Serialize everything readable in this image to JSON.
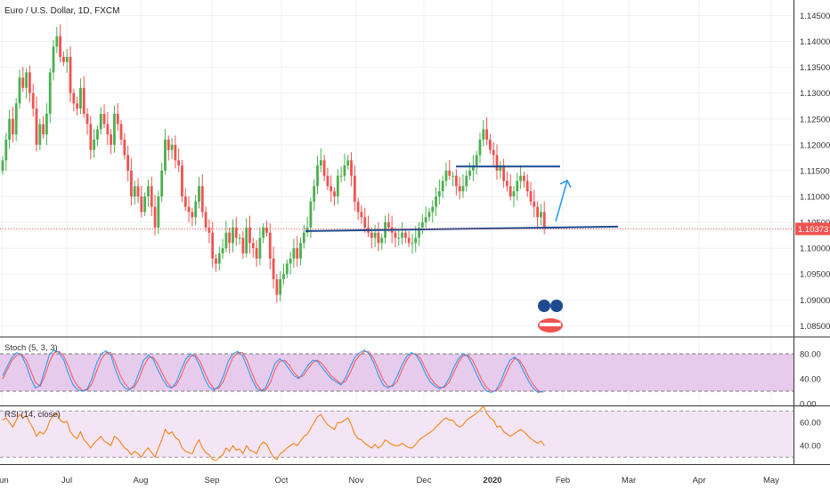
{
  "header": {
    "title": "Euro / U.S. Dollar, 1D, FXCM"
  },
  "price": {
    "last_price": "1.10373",
    "y_ticks": [
      "1.14500",
      "1.14000",
      "1.13500",
      "1.13000",
      "1.12500",
      "1.12000",
      "1.11500",
      "1.11000",
      "1.10500",
      "1.10000",
      "1.09500",
      "1.09000",
      "1.08500"
    ]
  },
  "stoch": {
    "label": "Stoch (5, 3, 3)",
    "ticks": [
      "80.00",
      "40.00",
      "0.00"
    ],
    "band": [
      20,
      80
    ]
  },
  "rsi": {
    "label": "RSI (14, close)",
    "ticks": [
      "60.00",
      "40.00"
    ]
  },
  "x_axis": {
    "labels": [
      "Jun",
      "Jul",
      "Aug",
      "Sep",
      "Oct",
      "Nov",
      "Dec",
      "2020",
      "Feb",
      "Mar",
      "Apr",
      "May"
    ]
  },
  "colors": {
    "up": "#4caf50",
    "down": "#ef5350",
    "stoch_k": "#2196f3",
    "stoch_d": "#ff5252",
    "rsi": "#f57c00",
    "band": "#e1bee7",
    "annotation": "#1e4b8f",
    "arrow": "#2196f3",
    "last_price_bg": "#ef5350"
  },
  "chart_data": [
    {
      "type": "candlestick",
      "title": "Euro / U.S. Dollar, 1D, FXCM",
      "ylim": [
        1.083,
        1.148
      ],
      "annotations": [
        {
          "kind": "horizontal_line",
          "value": 1.1158,
          "from": "Dec",
          "to": "Feb"
        },
        {
          "kind": "horizontal_line",
          "value": 1.104,
          "from": "Oct",
          "to": "Mar"
        },
        {
          "kind": "arrow",
          "direction": "up"
        }
      ],
      "close": [
        1.117,
        1.121,
        1.125,
        1.122,
        1.128,
        1.133,
        1.131,
        1.134,
        1.13,
        1.127,
        1.12,
        1.124,
        1.122,
        1.126,
        1.134,
        1.139,
        1.141,
        1.137,
        1.136,
        1.137,
        1.13,
        1.128,
        1.127,
        1.131,
        1.126,
        1.124,
        1.119,
        1.121,
        1.123,
        1.126,
        1.124,
        1.122,
        1.12,
        1.126,
        1.124,
        1.121,
        1.118,
        1.115,
        1.11,
        1.112,
        1.11,
        1.107,
        1.11,
        1.112,
        1.108,
        1.104,
        1.11,
        1.115,
        1.121,
        1.119,
        1.12,
        1.117,
        1.116,
        1.11,
        1.108,
        1.107,
        1.106,
        1.109,
        1.112,
        1.107,
        1.104,
        1.103,
        1.098,
        1.097,
        1.099,
        1.1,
        1.103,
        1.101,
        1.104,
        1.102,
        1.102,
        1.099,
        1.104,
        1.101,
        1.1,
        1.098,
        1.102,
        1.104,
        1.103,
        1.098,
        1.094,
        1.091,
        1.094,
        1.095,
        1.097,
        1.098,
        1.1,
        1.098,
        1.101,
        1.103,
        1.104,
        1.109,
        1.112,
        1.116,
        1.117,
        1.114,
        1.112,
        1.111,
        1.11,
        1.114,
        1.114,
        1.116,
        1.117,
        1.114,
        1.109,
        1.107,
        1.106,
        1.104,
        1.103,
        1.102,
        1.103,
        1.101,
        1.102,
        1.105,
        1.104,
        1.103,
        1.102,
        1.102,
        1.103,
        1.102,
        1.101,
        1.101,
        1.102,
        1.104,
        1.105,
        1.106,
        1.107,
        1.108,
        1.11,
        1.111,
        1.113,
        1.115,
        1.114,
        1.114,
        1.112,
        1.111,
        1.112,
        1.114,
        1.115,
        1.116,
        1.118,
        1.121,
        1.123,
        1.121,
        1.119,
        1.118,
        1.115,
        1.116,
        1.113,
        1.112,
        1.11,
        1.111,
        1.113,
        1.114,
        1.113,
        1.111,
        1.109,
        1.108,
        1.106,
        1.107,
        1.104
      ]
    },
    {
      "type": "line",
      "title": "Stoch (5, 3, 3)",
      "ylim": [
        0,
        100
      ],
      "series": [
        {
          "name": "%K",
          "values": [
            45,
            60,
            75,
            82,
            78,
            62,
            40,
            25,
            30,
            55,
            80,
            86,
            82,
            70,
            48,
            30,
            22,
            20,
            24,
            40,
            65,
            80,
            85,
            78,
            55,
            35,
            25,
            22,
            30,
            50,
            70,
            78,
            72,
            55,
            40,
            28,
            25,
            35,
            55,
            72,
            80,
            75,
            60,
            40,
            26,
            22,
            28,
            45,
            68,
            80,
            84,
            78,
            60,
            40,
            25,
            20,
            26,
            45,
            65,
            72,
            66,
            55,
            45,
            40,
            50,
            62,
            70,
            68,
            58,
            48,
            40,
            35,
            30,
            42,
            60,
            75,
            82,
            86,
            80,
            65,
            45,
            30,
            25,
            30,
            45,
            62,
            76,
            82,
            78,
            65,
            48,
            35,
            28,
            24,
            28,
            40,
            58,
            72,
            80,
            76,
            62,
            45,
            30,
            20,
            18,
            22,
            35,
            55,
            70,
            75,
            66,
            50,
            35,
            24,
            18,
            20
          ]
        },
        {
          "name": "%D",
          "values": [
            40,
            55,
            70,
            78,
            80,
            70,
            52,
            34,
            28,
            45,
            68,
            82,
            84,
            76,
            60,
            40,
            28,
            21,
            22,
            32,
            52,
            72,
            82,
            82,
            66,
            46,
            32,
            24,
            26,
            40,
            60,
            74,
            75,
            64,
            48,
            34,
            26,
            30,
            45,
            64,
            76,
            78,
            68,
            50,
            34,
            24,
            25,
            36,
            56,
            74,
            82,
            82,
            70,
            50,
            32,
            22,
            22,
            34,
            55,
            68,
            70,
            62,
            50,
            42,
            45,
            56,
            66,
            70,
            64,
            54,
            44,
            38,
            32,
            36,
            50,
            68,
            78,
            84,
            83,
            72,
            55,
            38,
            28,
            28,
            36,
            54,
            70,
            80,
            80,
            72,
            56,
            42,
            32,
            26,
            26,
            34,
            50,
            66,
            77,
            78,
            70,
            54,
            38,
            26,
            20,
            20,
            28,
            45,
            62,
            73,
            70,
            58,
            42,
            30,
            21,
            18
          ]
        }
      ]
    },
    {
      "type": "line",
      "title": "RSI (14, close)",
      "ylim": [
        24,
        74
      ],
      "series": [
        {
          "name": "RSI",
          "values": [
            62,
            64,
            60,
            56,
            62,
            67,
            64,
            66,
            60,
            55,
            48,
            52,
            50,
            54,
            62,
            66,
            68,
            62,
            60,
            61,
            52,
            48,
            46,
            52,
            45,
            42,
            38,
            42,
            45,
            48,
            44,
            42,
            40,
            48,
            46,
            42,
            38,
            36,
            32,
            35,
            33,
            30,
            35,
            38,
            34,
            30,
            38,
            45,
            54,
            50,
            52,
            47,
            45,
            38,
            35,
            34,
            33,
            40,
            45,
            38,
            34,
            32,
            28,
            27,
            30,
            32,
            38,
            35,
            40,
            36,
            37,
            33,
            40,
            36,
            35,
            33,
            40,
            43,
            41,
            35,
            30,
            28,
            33,
            35,
            38,
            40,
            42,
            40,
            44,
            48,
            50,
            55,
            60,
            65,
            67,
            62,
            58,
            56,
            54,
            60,
            60,
            62,
            64,
            58,
            50,
            46,
            45,
            42,
            40,
            38,
            41,
            38,
            40,
            45,
            43,
            41,
            40,
            40,
            42,
            40,
            38,
            38,
            41,
            45,
            47,
            49,
            51,
            53,
            56,
            59,
            62,
            64,
            62,
            62,
            58,
            56,
            58,
            62,
            64,
            66,
            68,
            71,
            74,
            68,
            64,
            62,
            56,
            57,
            52,
            50,
            48,
            50,
            52,
            54,
            52,
            49,
            46,
            44,
            42,
            44,
            40
          ]
        }
      ]
    }
  ]
}
